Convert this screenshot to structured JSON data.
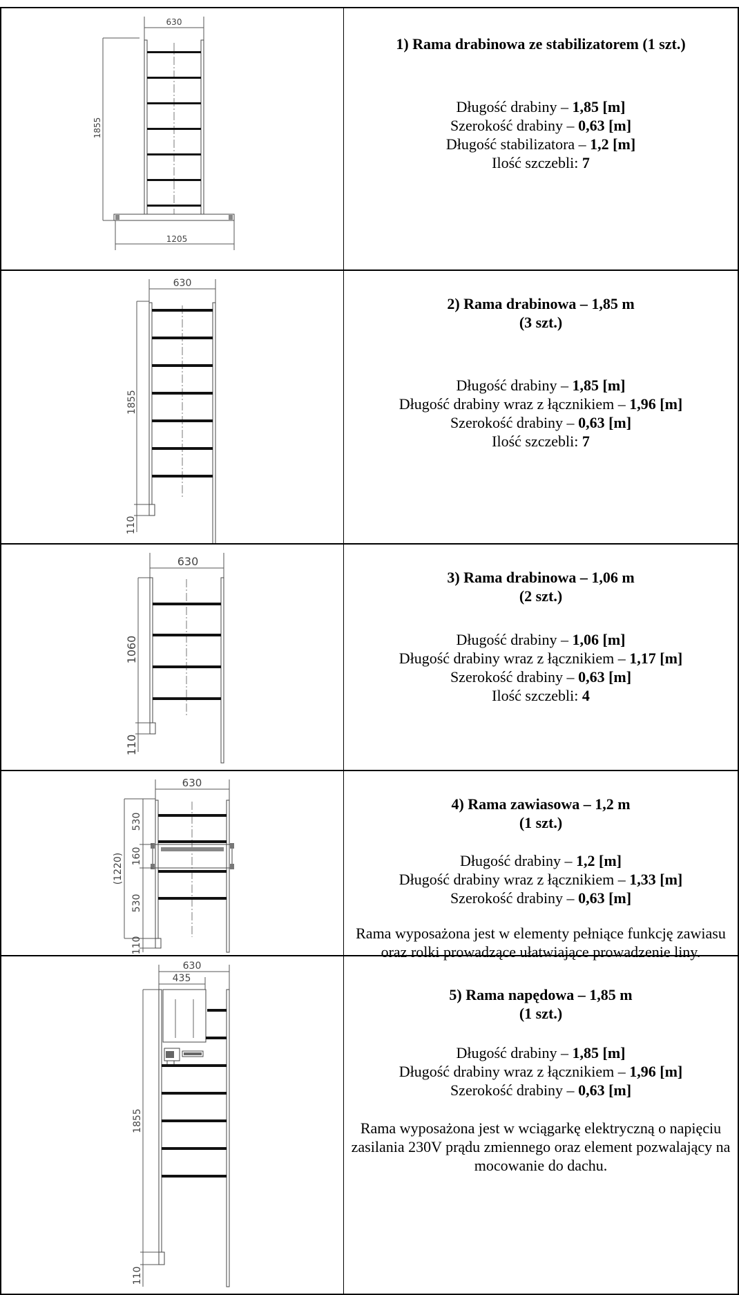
{
  "rows": [
    {
      "title": "1) Rama drabinowa ze stabilizatorem  (1 szt.)",
      "specs": [
        {
          "label": "Długość drabiny – ",
          "value": "1,85 [m]"
        },
        {
          "label": "Szerokość drabiny – ",
          "value": "0,63 [m]"
        },
        {
          "label": "Długość stabilizatora – ",
          "value": "1,2 [m]"
        },
        {
          "label": "Ilość szczebli: ",
          "value": "7"
        }
      ],
      "dims": {
        "width": "630",
        "height": "1855",
        "base": "1205"
      }
    },
    {
      "title_line1": "2) Rama drabinowa – 1,85 m",
      "title_line2": "(3 szt.)",
      "specs": [
        {
          "label": "Długość drabiny – ",
          "value": "1,85 [m]"
        },
        {
          "label": "Długość drabiny wraz z łącznikiem – ",
          "value": "1,96 [m]"
        },
        {
          "label": "Szerokość drabiny – ",
          "value": "0,63 [m]"
        },
        {
          "label": "Ilość szczebli: ",
          "value": "7"
        }
      ],
      "dims": {
        "width": "630",
        "height": "1855",
        "connector": "110"
      }
    },
    {
      "title_line1": "3) Rama drabinowa – 1,06 m",
      "title_line2": "(2 szt.)",
      "specs": [
        {
          "label": "Długość drabiny – ",
          "value": "1,06 [m]"
        },
        {
          "label": "Długość drabiny wraz z łącznikiem – ",
          "value": "1,17 [m]"
        },
        {
          "label": "Szerokość drabiny – ",
          "value": "0,63 [m]"
        },
        {
          "label": "Ilość szczebli: ",
          "value": "4"
        }
      ],
      "dims": {
        "width": "630",
        "height": "1060",
        "connector": "110"
      }
    },
    {
      "title_line1": "4) Rama zawiasowa – 1,2 m",
      "title_line2": "(1 szt.)",
      "specs": [
        {
          "label": "Długość drabiny – ",
          "value": "1,2 [m]"
        },
        {
          "label": "Długość drabiny wraz z łącznikiem – ",
          "value": "1,33 [m]"
        },
        {
          "label": "Szerokość drabiny – ",
          "value": "0,63 [m]"
        }
      ],
      "note": "Rama wyposażona jest w elementy pełniące funkcję zawiasu oraz rolki prowadzące ułatwiające prowadzenie liny.",
      "dims": {
        "width": "630",
        "total": "(1220)",
        "upper": "530",
        "hinge": "160",
        "lower": "530",
        "connector": "110"
      }
    },
    {
      "title_line1": "5) Rama napędowa – 1,85 m",
      "title_line2": "(1 szt.)",
      "specs": [
        {
          "label": "Długość drabiny – ",
          "value": "1,85 [m]"
        },
        {
          "label": "Długość drabiny wraz z łącznikiem – ",
          "value": "1,96 [m]"
        },
        {
          "label": "Szerokość drabiny – ",
          "value": "0,63 [m]"
        }
      ],
      "note": "Rama wyposażona jest w wciągarkę elektryczną o napięciu zasilania 230V prądu zmiennego oraz element pozwalający na mocowanie do dachu.",
      "dims": {
        "width": "630",
        "winch": "435",
        "height": "1855",
        "connector": "110"
      }
    }
  ]
}
